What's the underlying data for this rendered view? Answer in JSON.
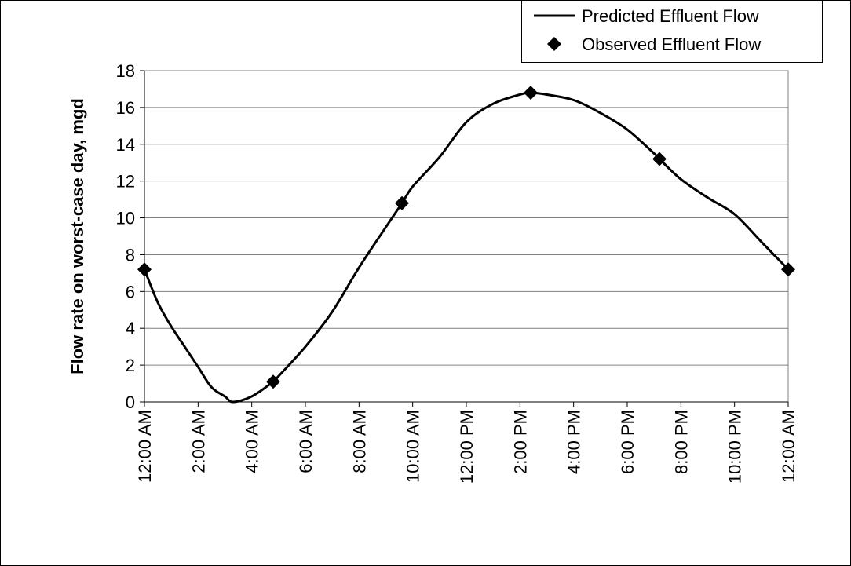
{
  "chart_data": {
    "type": "line",
    "y_label": "Flow rate on worst-case day, mgd",
    "series": [
      {
        "name": "Predicted Effluent Flow",
        "color": "#000000",
        "marker": "none",
        "x": [
          0,
          0.5,
          1,
          1.5,
          2,
          2.5,
          3,
          3.3,
          4,
          4.8,
          5,
          6,
          7,
          8,
          9,
          9.6,
          10,
          11,
          12,
          13,
          14,
          14.4,
          15,
          16,
          17,
          18,
          19,
          19.2,
          20,
          21,
          22,
          23,
          24
        ],
        "values": [
          7.2,
          5.4,
          4.1,
          3.0,
          1.9,
          0.8,
          0.3,
          0,
          0.3,
          1.1,
          1.4,
          3.0,
          4.9,
          7.3,
          9.5,
          10.8,
          11.7,
          13.3,
          15.2,
          16.2,
          16.7,
          16.8,
          16.7,
          16.4,
          15.7,
          14.8,
          13.5,
          13.2,
          12.1,
          11.1,
          10.2,
          8.7,
          7.2
        ]
      },
      {
        "name": "Observed Effluent Flow",
        "color": "#000000",
        "marker": "diamond",
        "x": [
          0,
          4.8,
          9.6,
          14.4,
          19.2,
          24
        ],
        "values": [
          7.2,
          1.1,
          10.8,
          16.8,
          13.2,
          7.2
        ]
      }
    ],
    "xlim": [
      0,
      24
    ],
    "xticks": [
      {
        "value": 0,
        "label": "12:00 AM"
      },
      {
        "value": 2,
        "label": "2:00 AM"
      },
      {
        "value": 4,
        "label": "4:00 AM"
      },
      {
        "value": 6,
        "label": "6:00 AM"
      },
      {
        "value": 8,
        "label": "8:00 AM"
      },
      {
        "value": 10,
        "label": "10:00 AM"
      },
      {
        "value": 12,
        "label": "12:00 PM"
      },
      {
        "value": 14,
        "label": "2:00 PM"
      },
      {
        "value": 16,
        "label": "4:00 PM"
      },
      {
        "value": 18,
        "label": "6:00 PM"
      },
      {
        "value": 20,
        "label": "8:00 PM"
      },
      {
        "value": 22,
        "label": "10:00 PM"
      },
      {
        "value": 24,
        "label": "12:00 AM"
      }
    ],
    "ylim": [
      0,
      18
    ],
    "yticks": [
      0,
      2,
      4,
      6,
      8,
      10,
      12,
      14,
      16,
      18
    ],
    "grid": true,
    "legend": "top-right"
  }
}
